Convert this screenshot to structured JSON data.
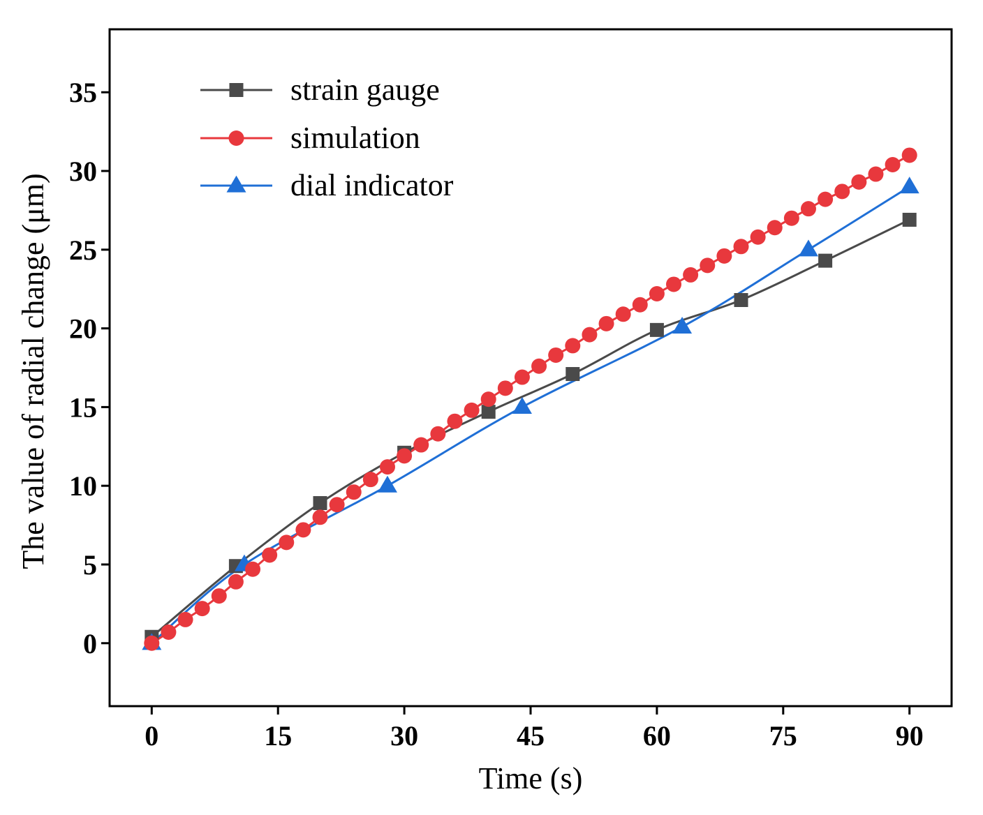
{
  "chart_data": {
    "type": "line",
    "title": "",
    "xlabel": "Time (s)",
    "ylabel": "The value of radial change (μm)",
    "xlim": [
      -5,
      95
    ],
    "ylim": [
      -4,
      39
    ],
    "xticks": [
      0,
      15,
      30,
      45,
      60,
      75,
      90
    ],
    "yticks": [
      0,
      5,
      10,
      15,
      20,
      25,
      30,
      35
    ],
    "legend_position": "top-left",
    "grid": false,
    "series": [
      {
        "name": "strain gauge",
        "color": "#4a4a4a",
        "marker": "square",
        "x": [
          0,
          10,
          20,
          30,
          40,
          50,
          60,
          70,
          80,
          90
        ],
        "y": [
          0.4,
          4.9,
          8.9,
          12.1,
          14.7,
          17.1,
          19.9,
          21.8,
          24.3,
          26.9
        ]
      },
      {
        "name": "simulation",
        "color": "#e8383d",
        "marker": "circle",
        "x": [
          0,
          2,
          4,
          6,
          8,
          10,
          12,
          14,
          16,
          18,
          20,
          22,
          24,
          26,
          28,
          30,
          32,
          34,
          36,
          38,
          40,
          42,
          44,
          46,
          48,
          50,
          52,
          54,
          56,
          58,
          60,
          62,
          64,
          66,
          68,
          70,
          72,
          74,
          76,
          78,
          80,
          82,
          84,
          86,
          88,
          90
        ],
        "y": [
          0.0,
          0.7,
          1.5,
          2.2,
          3.0,
          3.9,
          4.7,
          5.6,
          6.4,
          7.2,
          8.0,
          8.8,
          9.6,
          10.4,
          11.2,
          11.9,
          12.6,
          13.3,
          14.1,
          14.8,
          15.5,
          16.2,
          16.9,
          17.6,
          18.3,
          18.9,
          19.6,
          20.3,
          20.9,
          21.5,
          22.2,
          22.8,
          23.4,
          24.0,
          24.6,
          25.2,
          25.8,
          26.4,
          27.0,
          27.6,
          28.2,
          28.7,
          29.3,
          29.8,
          30.4,
          31.0
        ]
      },
      {
        "name": "dial indicator",
        "color": "#1f6fd6",
        "marker": "triangle",
        "x": [
          0,
          11,
          28,
          44,
          63,
          78,
          90
        ],
        "y": [
          0.0,
          5.0,
          10.0,
          15.0,
          20.1,
          25.0,
          29.0
        ]
      }
    ]
  }
}
